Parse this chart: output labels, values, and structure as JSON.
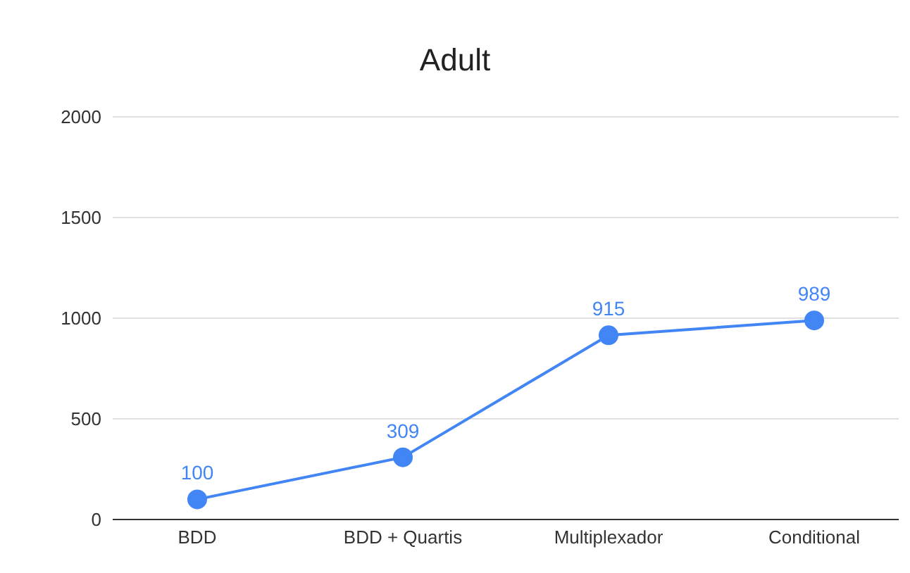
{
  "chart_data": {
    "type": "line",
    "title": "Adult",
    "categories": [
      "BDD",
      "BDD + Quartis",
      "Multiplexador",
      "Conditional"
    ],
    "series": [
      {
        "color": "#4285f4",
        "values": [
          100,
          309,
          915,
          989
        ]
      }
    ],
    "ylim": [
      0,
      2000
    ],
    "yticks": [
      0,
      500,
      1000,
      1500,
      2000
    ],
    "grid": "y",
    "marker": "circle",
    "line_style": "solid",
    "data_labels": true
  }
}
